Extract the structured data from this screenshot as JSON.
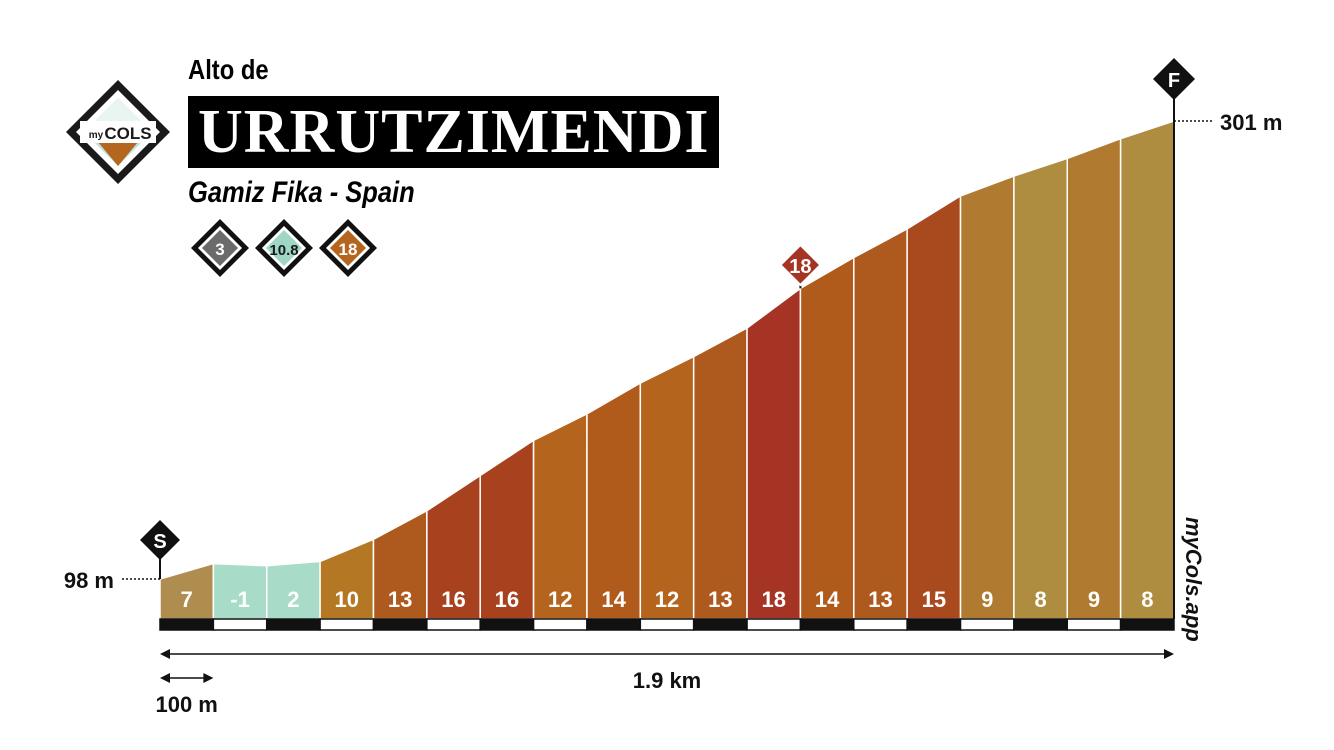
{
  "title": {
    "prefix": "Alto de",
    "name": "URRUTZIMENDI",
    "location": "Gamiz Fika - Spain"
  },
  "logo": {
    "prefix": "my",
    "name": "COLS"
  },
  "badges": [
    {
      "value": "3",
      "color": "#6b6b6b"
    },
    {
      "value": "10.8",
      "color": "#9fd6c6",
      "text_color": "#1a1a1a"
    },
    {
      "value": "18",
      "color": "#b4651e"
    }
  ],
  "colors": {
    "-1": "#a8dcc8",
    "2": "#a8dcc8",
    "7": "#ae8d4f",
    "8": "#ae8d40",
    "9": "#b07a30",
    "10": "#b47824",
    "12": "#b5641e",
    "13": "#ae5a1e",
    "14": "#b05a1c",
    "15": "#a84a1e",
    "16": "#a8421e",
    "18": "#a63424"
  },
  "chart_data": {
    "type": "area",
    "distance_label": "1.9 km",
    "scale_label": "100 m",
    "segment_length_m": 100,
    "total_distance_km": 1.9,
    "start_label": "98 m",
    "end_label": "301 m",
    "start_elevation_m": 98,
    "end_elevation_m": 301,
    "start_marker": "S",
    "finish_marker": "F",
    "max_gradient_marker": "18",
    "gradients": [
      7,
      -1,
      2,
      10,
      13,
      16,
      16,
      12,
      14,
      12,
      13,
      18,
      14,
      13,
      15,
      9,
      8,
      9,
      8
    ],
    "gradient_labels": [
      "7",
      "-1",
      "2",
      "10",
      "13",
      "16",
      "16",
      "12",
      "14",
      "12",
      "13",
      "18",
      "14",
      "13",
      "15",
      "9",
      "8",
      "9",
      "8"
    ]
  },
  "watermark": "myCols.app"
}
